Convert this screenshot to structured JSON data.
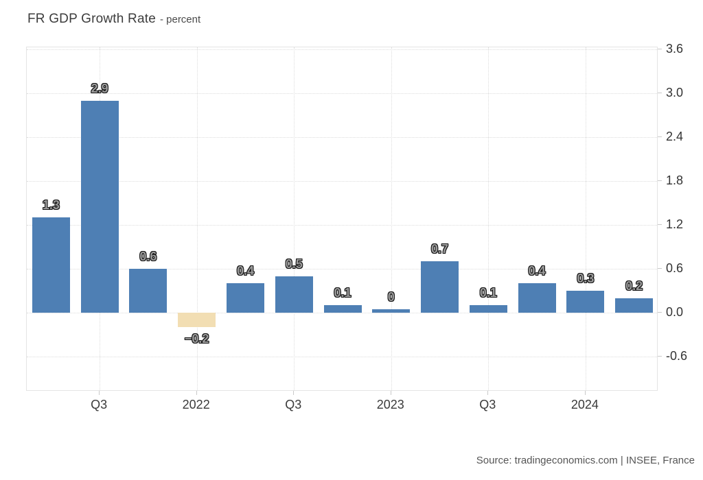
{
  "header": {
    "title": "FR GDP Growth Rate",
    "subtitle": "- percent"
  },
  "source": {
    "text": "Source: tradingeconomics.com | INSEE, France"
  },
  "chart_data": {
    "type": "bar",
    "title": "FR GDP Growth Rate",
    "subtitle": "- percent",
    "ylabel": "percent",
    "xlabel": "",
    "categories": [
      "",
      "Q3",
      "",
      "2022",
      "",
      "Q3",
      "",
      "2023",
      "",
      "Q3",
      "",
      "2024",
      ""
    ],
    "values": [
      1.3,
      2.9,
      0.6,
      -0.2,
      0.4,
      0.5,
      0.1,
      0,
      0.7,
      0.1,
      0.4,
      0.3,
      0.2
    ],
    "value_labels": [
      "1.3",
      "2.9",
      "0.6",
      "−0.2",
      "0.4",
      "0.5",
      "0.1",
      "0",
      "0.7",
      "0.1",
      "0.4",
      "0.3",
      "0.2"
    ],
    "y_tick_labels": [
      "3.6",
      "3.0",
      "2.4",
      "1.8",
      "1.2",
      "0.6",
      "0.0",
      "-0.6"
    ],
    "ylim": [
      -1.08,
      3.63
    ],
    "grid": "dotted",
    "legend": "none",
    "axis_side": "right",
    "colors": {
      "bar_positive": "#4e7fb4",
      "bar_negative": "#f2deb3",
      "gridline": "#dcdcdc",
      "tick_text": "#333333",
      "data_label_fill": "#9c9c9c",
      "data_label_outline": "#141414"
    }
  }
}
